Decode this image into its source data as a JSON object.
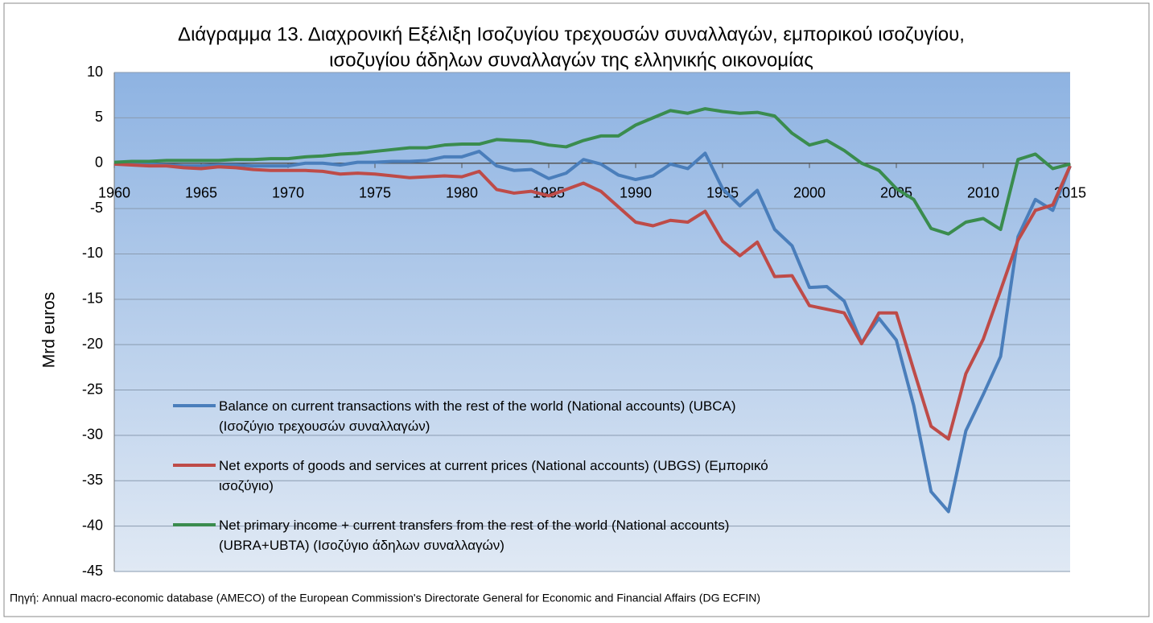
{
  "chart_data": {
    "type": "line",
    "title": [
      "Διάγραμμα 13. Διαχρονική Εξέλιξη Ισοζυγίου τρεχουσών συναλλαγών, εμπορικού ισοζυγίου,",
      "ισοζυγίου άδηλων συναλλαγών  της ελληνικής οικονομίας"
    ],
    "y_label": "Mrd  euros",
    "source": "Πηγή: Annual macro-economic database (AMECO) of the European Commission's Directorate General for Economic and Financial Affairs (DG ECFIN)",
    "x": [
      1960,
      1961,
      1962,
      1963,
      1964,
      1965,
      1966,
      1967,
      1968,
      1969,
      1970,
      1971,
      1972,
      1973,
      1974,
      1975,
      1976,
      1977,
      1978,
      1979,
      1980,
      1981,
      1982,
      1983,
      1984,
      1985,
      1986,
      1987,
      1988,
      1989,
      1990,
      1991,
      1992,
      1993,
      1994,
      1995,
      1996,
      1997,
      1998,
      1999,
      2000,
      2001,
      2002,
      2003,
      2004,
      2005,
      2006,
      2007,
      2008,
      2009,
      2010,
      2011,
      2012,
      2013,
      2014,
      2015
    ],
    "xlim": [
      1960,
      2015
    ],
    "xticks": [
      1960,
      1965,
      1970,
      1975,
      1980,
      1985,
      1990,
      1995,
      2000,
      2005,
      2010,
      2015
    ],
    "ylim": [
      -45,
      10
    ],
    "yticks": [
      10,
      5,
      0,
      -5,
      -10,
      -15,
      -20,
      -25,
      -30,
      -35,
      -40,
      -45
    ],
    "grid": true,
    "series": [
      {
        "name": "Balance on current transactions with the rest of the world (National accounts) (UBCA) (Ισοζύγιο τρεχουσών συναλλαγών)",
        "color": "#4a7ebb",
        "values": [
          0,
          0,
          -0.1,
          -0.2,
          -0.3,
          -0.3,
          -0.2,
          -0.2,
          -0.3,
          -0.3,
          -0.3,
          0,
          0,
          -0.2,
          0.1,
          0.1,
          0.2,
          0.2,
          0.3,
          0.7,
          0.7,
          1.3,
          -0.3,
          -0.8,
          -0.7,
          -1.7,
          -1.1,
          0.4,
          -0.1,
          -1.3,
          -1.8,
          -1.4,
          -0.1,
          -0.6,
          1.1,
          -2.8,
          -4.7,
          -3,
          -7.3,
          -9.1,
          -13.7,
          -13.6,
          -15.2,
          -19.8,
          -17.1,
          -19.5,
          -26.7,
          -36.2,
          -38.4,
          -29.5,
          -25.5,
          -21.3,
          -8.1,
          -4,
          -5.2,
          -0.3
        ]
      },
      {
        "name": "Net exports of goods and services at current prices (National accounts) (UBGS) (Εμπορικό ισοζύγιο)",
        "color": "#be4b48",
        "values": [
          -0.1,
          -0.2,
          -0.3,
          -0.3,
          -0.5,
          -0.6,
          -0.4,
          -0.5,
          -0.7,
          -0.8,
          -0.8,
          -0.8,
          -0.9,
          -1.2,
          -1.1,
          -1.2,
          -1.4,
          -1.6,
          -1.5,
          -1.4,
          -1.5,
          -0.9,
          -2.9,
          -3.3,
          -3.1,
          -3.6,
          -2.9,
          -2.2,
          -3.1,
          -4.8,
          -6.5,
          -6.9,
          -6.3,
          -6.5,
          -5.3,
          -8.6,
          -10.2,
          -8.7,
          -12.5,
          -12.4,
          -15.7,
          -16.1,
          -16.5,
          -19.9,
          -16.5,
          -16.5,
          -22.8,
          -29,
          -30.4,
          -23.2,
          -19.4,
          -14,
          -8.5,
          -5.2,
          -4.6,
          -0.3
        ]
      },
      {
        "name": "Net primary income + current transfers from the rest of the world (National accounts) (UBRA+UBTA) (Ισοζύγιο άδηλων συναλλαγών)",
        "color": "#3a8c4e",
        "values": [
          0.1,
          0.2,
          0.2,
          0.3,
          0.3,
          0.3,
          0.3,
          0.4,
          0.4,
          0.5,
          0.5,
          0.7,
          0.8,
          1.0,
          1.1,
          1.3,
          1.5,
          1.7,
          1.7,
          2.0,
          2.1,
          2.1,
          2.6,
          2.5,
          2.4,
          2.0,
          1.8,
          2.5,
          3.0,
          3.0,
          4.2,
          5.0,
          5.8,
          5.5,
          6.0,
          5.7,
          5.5,
          5.6,
          5.2,
          3.3,
          2.0,
          2.5,
          1.4,
          0,
          -0.8,
          -2.8,
          -4,
          -7.2,
          -7.8,
          -6.5,
          -6.1,
          -7.3,
          0.4,
          1.0,
          -0.6,
          -0.1
        ]
      }
    ]
  }
}
